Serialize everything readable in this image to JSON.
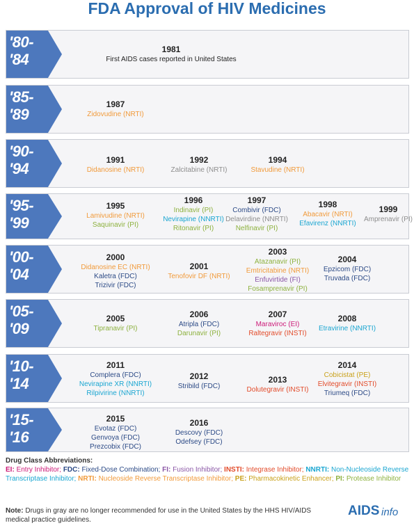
{
  "title": "FDA Approval of HIV Medicines",
  "rows": [
    {
      "line1": "'80-",
      "line2": "'84",
      "entries": [
        {
          "year": "1981",
          "drugs": [
            {
              "name": "First AIDS cases reported in United States",
              "cls": "plain"
            }
          ]
        }
      ]
    },
    {
      "line1": "'85-",
      "line2": "'89",
      "entries": [
        {
          "year": "1987",
          "drugs": [
            {
              "name": "Zidovudine (NRTI)",
              "cls": "NRTI"
            }
          ]
        }
      ]
    },
    {
      "line1": "'90-",
      "line2": "'94",
      "entries": [
        {
          "year": "1991",
          "drugs": [
            {
              "name": "Didanosine (NRTI)",
              "cls": "NRTI"
            }
          ]
        },
        {
          "year": "1992",
          "drugs": [
            {
              "name": "Zalcitabine (NRTI)",
              "cls": "gray"
            }
          ]
        },
        {
          "year": "1994",
          "drugs": [
            {
              "name": "Stavudine (NRTI)",
              "cls": "NRTI"
            }
          ]
        }
      ]
    },
    {
      "line1": "'95-",
      "line2": "'99",
      "entries": [
        {
          "year": "1995",
          "drugs": [
            {
              "name": "Lamivudine (NRTI)",
              "cls": "NRTI"
            },
            {
              "name": "Saquinavir (PI)",
              "cls": "PI"
            }
          ]
        },
        {
          "year": "1996",
          "drugs": [
            {
              "name": "Indinavir (PI)",
              "cls": "PI"
            },
            {
              "name": "Nevirapine (NNRTI)",
              "cls": "NNRTI"
            },
            {
              "name": "Ritonavir (PI)",
              "cls": "PI"
            }
          ]
        },
        {
          "year": "1997",
          "drugs": [
            {
              "name": "Combivir (FDC)",
              "cls": "FDC"
            },
            {
              "name": "Delavirdine (NNRTI)",
              "cls": "gray"
            },
            {
              "name": "Nelfinavir (PI)",
              "cls": "PI"
            }
          ]
        },
        {
          "year": "1998",
          "drugs": [
            {
              "name": "Abacavir (NRTI)",
              "cls": "NRTI"
            },
            {
              "name": "Efavirenz (NNRTI)",
              "cls": "NNRTI"
            }
          ]
        },
        {
          "year": "1999",
          "drugs": [
            {
              "name": "Amprenavir (PI)",
              "cls": "gray"
            }
          ]
        }
      ]
    },
    {
      "line1": "'00-",
      "line2": "'04",
      "entries": [
        {
          "year": "2000",
          "drugs": [
            {
              "name": "Didanosine EC (NRTI)",
              "cls": "NRTI"
            },
            {
              "name": "Kaletra (FDC)",
              "cls": "FDC"
            },
            {
              "name": "Trizivir (FDC)",
              "cls": "FDC"
            }
          ]
        },
        {
          "year": "2001",
          "drugs": [
            {
              "name": "Tenofovir DF (NRTI)",
              "cls": "NRTI"
            }
          ]
        },
        {
          "year": "2003",
          "drugs": [
            {
              "name": "Atazanavir (PI)",
              "cls": "PI"
            },
            {
              "name": "Emtricitabine (NRTI)",
              "cls": "NRTI"
            },
            {
              "name": "Enfuvirtide (FI)",
              "cls": "FI"
            },
            {
              "name": "Fosamprenavir (PI)",
              "cls": "PI"
            }
          ]
        },
        {
          "year": "2004",
          "drugs": [
            {
              "name": "Epzicom (FDC)",
              "cls": "FDC"
            },
            {
              "name": "Truvada (FDC)",
              "cls": "FDC"
            }
          ]
        }
      ]
    },
    {
      "line1": "'05-",
      "line2": "'09",
      "entries": [
        {
          "year": "2005",
          "drugs": [
            {
              "name": "Tipranavir (PI)",
              "cls": "PI"
            }
          ]
        },
        {
          "year": "2006",
          "drugs": [
            {
              "name": "Atripla (FDC)",
              "cls": "FDC"
            },
            {
              "name": "Darunavir (PI)",
              "cls": "PI"
            }
          ]
        },
        {
          "year": "2007",
          "drugs": [
            {
              "name": "Maraviroc (EI)",
              "cls": "EI"
            },
            {
              "name": "Raltegravir (INSTI)",
              "cls": "INSTI"
            }
          ]
        },
        {
          "year": "2008",
          "drugs": [
            {
              "name": "Etravirine (NNRTI)",
              "cls": "NNRTI"
            }
          ]
        }
      ]
    },
    {
      "line1": "'10-",
      "line2": "'14",
      "entries": [
        {
          "year": "2011",
          "drugs": [
            {
              "name": "Complera (FDC)",
              "cls": "FDC"
            },
            {
              "name": "Nevirapine XR (NNRTI)",
              "cls": "NNRTI"
            },
            {
              "name": "Rilpivirine (NNRTI)",
              "cls": "NNRTI"
            }
          ]
        },
        {
          "year": "2012",
          "drugs": [
            {
              "name": "Stribild (FDC)",
              "cls": "FDC"
            }
          ]
        },
        {
          "year": "2013",
          "drugs": [
            {
              "name": "Dolutegravir (INSTI)",
              "cls": "INSTI"
            }
          ]
        },
        {
          "year": "2014",
          "drugs": [
            {
              "name": "Cobicistat (PE)",
              "cls": "PE"
            },
            {
              "name": "Elvitegravir (INSTI)",
              "cls": "INSTI"
            },
            {
              "name": "Triumeq (FDC)",
              "cls": "FDC"
            }
          ]
        }
      ]
    },
    {
      "line1": "'15-",
      "line2": "'16",
      "entries": [
        {
          "year": "2015",
          "drugs": [
            {
              "name": "Evotaz (FDC)",
              "cls": "FDC"
            },
            {
              "name": "Genvoya (FDC)",
              "cls": "FDC"
            },
            {
              "name": "Prezcobix (FDC)",
              "cls": "FDC"
            }
          ]
        },
        {
          "year": "2016",
          "drugs": [
            {
              "name": "Descovy (FDC)",
              "cls": "FDC"
            },
            {
              "name": "Odefsey (FDC)",
              "cls": "FDC"
            }
          ]
        }
      ]
    }
  ],
  "abbreviations": {
    "heading": "Drug Class Abbreviations:",
    "items": [
      {
        "abbr": "EI:",
        "desc": "Entry Inhibitor;",
        "cls": "EI"
      },
      {
        "abbr": "FDC:",
        "desc": "Fixed-Dose Combination;",
        "cls": "FDC"
      },
      {
        "abbr": "FI:",
        "desc": "Fusion Inhibitor;",
        "cls": "FI"
      },
      {
        "abbr": "INSTI:",
        "desc": "Integrase Inhibitor;",
        "cls": "INSTI"
      },
      {
        "abbr": "NNRTI:",
        "desc": "Non-Nucleoside Reverse Transcriptase Inhibitor;",
        "cls": "NNRTI"
      },
      {
        "abbr": "NRTI:",
        "desc": "Nucleoside Reverse Transcriptase Inhibitor;",
        "cls": "NRTI"
      },
      {
        "abbr": "PE:",
        "desc": "Pharmacokinetic Enhancer;",
        "cls": "PE"
      },
      {
        "abbr": "PI:",
        "desc": "Protease Inhibitor",
        "cls": "PI"
      }
    ]
  },
  "note": {
    "label": "Note:",
    "text": "Drugs in gray are no longer recommended for use in the United States by the HHS HIV/AIDS medical practice guidelines."
  },
  "logo": {
    "part1": "AIDS",
    "part2": "info"
  }
}
